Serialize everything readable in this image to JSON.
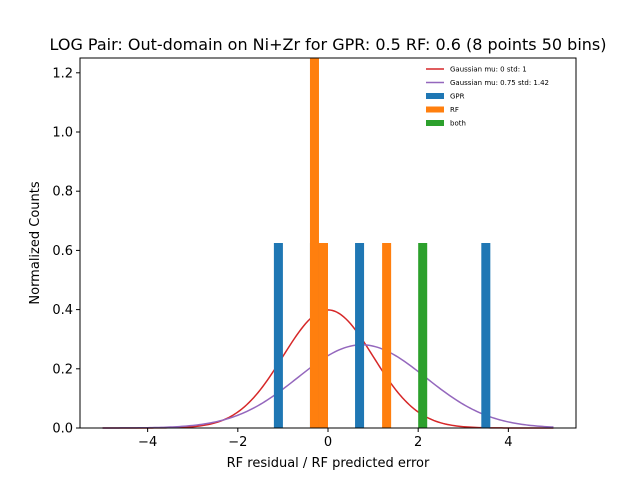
{
  "chart_data": {
    "type": "bar",
    "title": "LOG Pair: Out-domain on Ni+Zr for GPR: 0.5 RF: 0.6 (8 points 50 bins)",
    "xlabel": "RF residual / RF predicted error",
    "ylabel": "Normalized Counts",
    "xlim": [
      -5.5,
      5.5
    ],
    "ylim": [
      0,
      1.25
    ],
    "x_ticks": [
      -4,
      -2,
      0,
      2,
      4
    ],
    "x_tick_labels": [
      "−4",
      "−2",
      "0",
      "2",
      "4"
    ],
    "y_ticks": [
      0.0,
      0.2,
      0.4,
      0.6,
      0.8,
      1.0,
      1.2
    ],
    "y_tick_labels": [
      "0.0",
      "0.2",
      "0.4",
      "0.6",
      "0.8",
      "1.0",
      "1.2"
    ],
    "grid": false,
    "legend_position": "top-right",
    "bin_width": 0.2,
    "series": [
      {
        "name": "GPR",
        "kind": "bar",
        "color": "#1f77b4",
        "bars": [
          {
            "x": -1.1,
            "y": 0.625
          },
          {
            "x": -0.3,
            "y": 0.625
          },
          {
            "x": 0.7,
            "y": 0.625
          },
          {
            "x": 3.5,
            "y": 0.625
          }
        ]
      },
      {
        "name": "RF",
        "kind": "bar",
        "color": "#ff7f0e",
        "bars": [
          {
            "x": -0.3,
            "y": 1.25
          },
          {
            "x": -0.1,
            "y": 0.625
          },
          {
            "x": 1.3,
            "y": 0.625
          }
        ]
      },
      {
        "name": "both",
        "kind": "bar",
        "color": "#2ca02c",
        "bars": [
          {
            "x": 2.1,
            "y": 0.625
          }
        ]
      },
      {
        "name": "Gaussian mu: 0 std: 1",
        "kind": "gaussian",
        "color": "#d62728",
        "mu": 0,
        "std": 1,
        "range": [
          -5,
          5
        ]
      },
      {
        "name": "Gaussian mu: 0.75 std: 1.42",
        "kind": "gaussian",
        "color": "#9467bd",
        "mu": 0.75,
        "std": 1.42,
        "range": [
          -5,
          5
        ]
      }
    ],
    "legend_order": [
      "Gaussian mu: 0 std: 1",
      "Gaussian mu: 0.75 std: 1.42",
      "GPR",
      "RF",
      "both"
    ]
  }
}
